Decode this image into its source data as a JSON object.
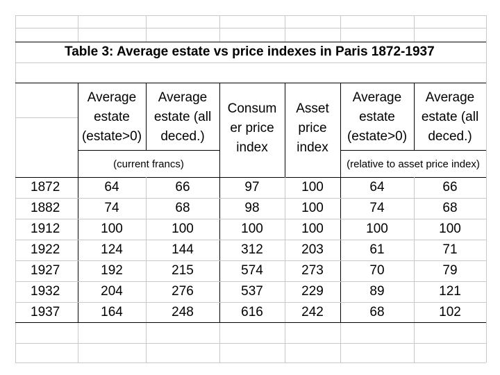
{
  "title": "Table 3: Average estate vs price indexes in Paris 1872-1937",
  "headers": [
    "Average estate (estate>0)",
    "Average estate (all deced.)",
    "Consum er price index",
    "Asset price index",
    "Average estate (estate>0)",
    "Average estate (all deced.)"
  ],
  "header_lines": [
    [
      "Average",
      "estate",
      "(estate>0)"
    ],
    [
      "Average",
      "estate (all",
      "deced.)"
    ],
    [
      "Consum",
      "er price",
      "index"
    ],
    [
      "Asset",
      "price",
      "index"
    ],
    [
      "Average",
      "estate",
      "(estate>0)"
    ],
    [
      "Average",
      "estate (all",
      "deced.)"
    ]
  ],
  "unit_left": "(current francs)",
  "unit_right": "(relative to asset price index)",
  "rows": [
    {
      "year": "1872",
      "values": [
        "64",
        "66",
        "97",
        "100",
        "64",
        "66"
      ]
    },
    {
      "year": "1882",
      "values": [
        "74",
        "68",
        "98",
        "100",
        "74",
        "68"
      ]
    },
    {
      "year": "1912",
      "values": [
        "100",
        "100",
        "100",
        "100",
        "100",
        "100"
      ]
    },
    {
      "year": "1922",
      "values": [
        "124",
        "144",
        "312",
        "203",
        "61",
        "71"
      ]
    },
    {
      "year": "1927",
      "values": [
        "192",
        "215",
        "574",
        "273",
        "70",
        "79"
      ]
    },
    {
      "year": "1932",
      "values": [
        "204",
        "276",
        "537",
        "229",
        "89",
        "121"
      ]
    },
    {
      "year": "1937",
      "values": [
        "164",
        "248",
        "616",
        "242",
        "68",
        "102"
      ]
    }
  ]
}
